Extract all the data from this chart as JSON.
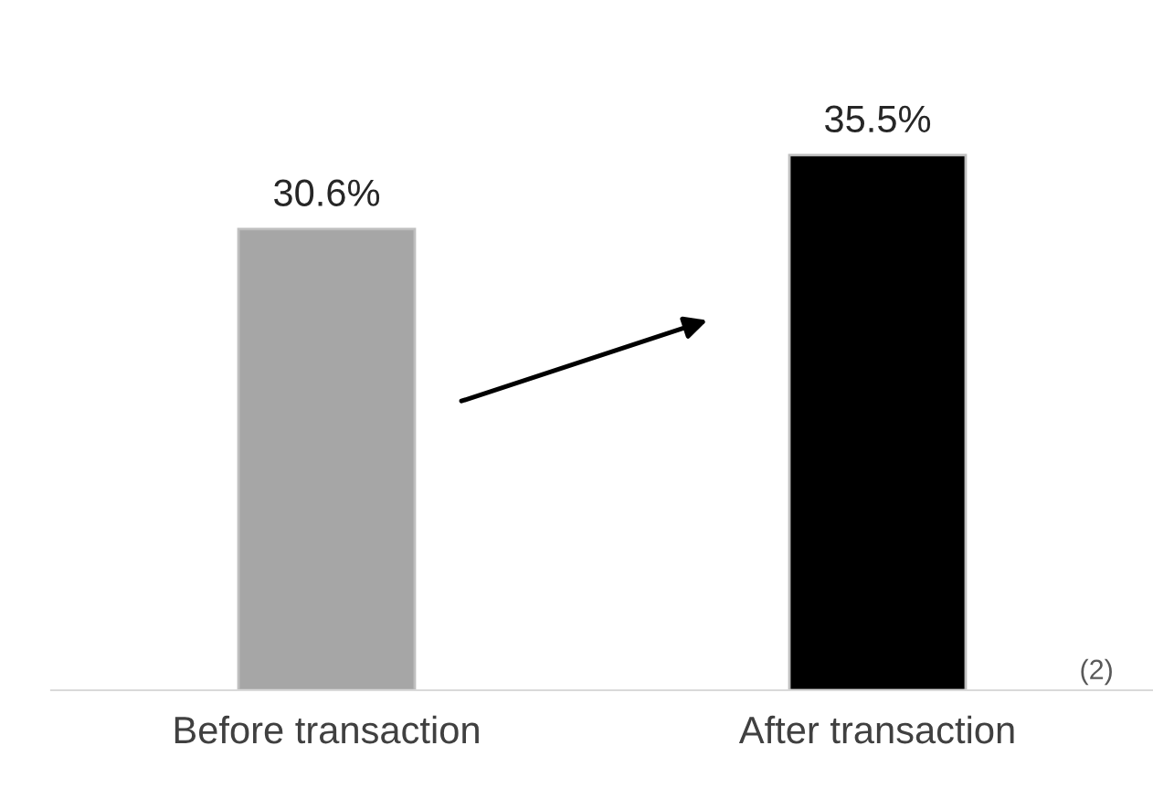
{
  "chart_data": {
    "type": "bar",
    "categories": [
      "Before transaction",
      "After transaction"
    ],
    "values": [
      30.6,
      35.5
    ],
    "colors": [
      "#a6a6a6",
      "#000000"
    ],
    "value_labels": [
      "30.6%",
      "35.5%"
    ],
    "tick_labels": "x",
    "grid": false,
    "annotations": [
      "(2)"
    ]
  }
}
